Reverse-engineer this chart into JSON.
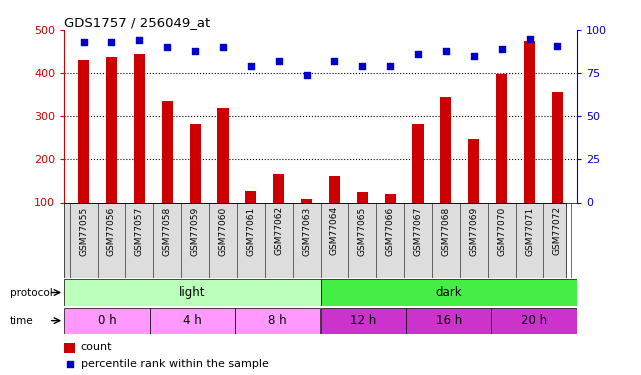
{
  "title": "GDS1757 / 256049_at",
  "samples": [
    "GSM77055",
    "GSM77056",
    "GSM77057",
    "GSM77058",
    "GSM77059",
    "GSM77060",
    "GSM77061",
    "GSM77062",
    "GSM77063",
    "GSM77064",
    "GSM77065",
    "GSM77066",
    "GSM77067",
    "GSM77068",
    "GSM77069",
    "GSM77070",
    "GSM77071",
    "GSM77072"
  ],
  "counts": [
    430,
    437,
    445,
    335,
    283,
    318,
    127,
    165,
    108,
    162,
    125,
    120,
    283,
    344,
    247,
    398,
    475,
    357
  ],
  "percentile": [
    93,
    93,
    94,
    90,
    88,
    90,
    79,
    82,
    74,
    82,
    79,
    79,
    86,
    88,
    85,
    89,
    95,
    91
  ],
  "ylim_left": [
    100,
    500
  ],
  "ylim_right": [
    0,
    100
  ],
  "yticks_left": [
    100,
    200,
    300,
    400,
    500
  ],
  "yticks_right": [
    0,
    25,
    50,
    75,
    100
  ],
  "bar_color": "#cc0000",
  "dot_color": "#0000cc",
  "protocol": [
    {
      "label": "light",
      "start": 0,
      "end": 9,
      "color": "#bbffbb"
    },
    {
      "label": "dark",
      "start": 9,
      "end": 18,
      "color": "#44ee44"
    }
  ],
  "time_groups": [
    {
      "label": "0 h",
      "start": 0,
      "end": 3,
      "color": "#ff99ff"
    },
    {
      "label": "4 h",
      "start": 3,
      "end": 6,
      "color": "#ff99ff"
    },
    {
      "label": "8 h",
      "start": 6,
      "end": 9,
      "color": "#ff99ff"
    },
    {
      "label": "12 h",
      "start": 9,
      "end": 12,
      "color": "#cc33cc"
    },
    {
      "label": "16 h",
      "start": 12,
      "end": 15,
      "color": "#cc33cc"
    },
    {
      "label": "20 h",
      "start": 15,
      "end": 18,
      "color": "#cc33cc"
    }
  ],
  "background_color": "#ffffff",
  "plot_bg": "#ffffff"
}
